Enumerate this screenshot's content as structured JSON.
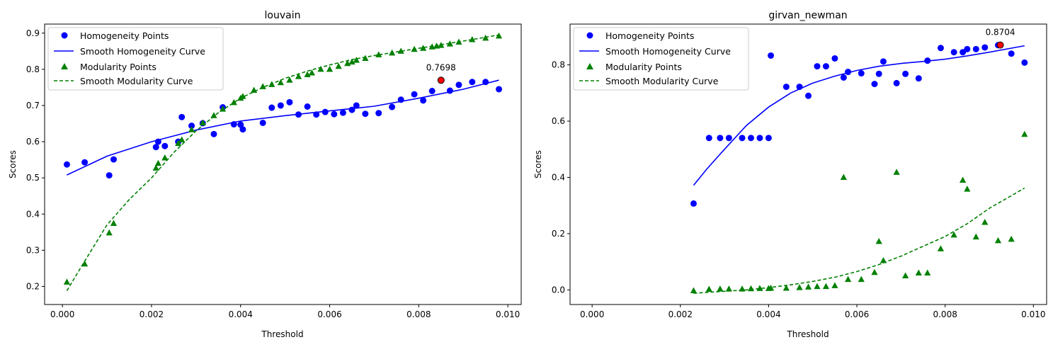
{
  "chart_data": [
    {
      "type": "scatter",
      "title": "louvain",
      "xlabel": "Threshold",
      "ylabel": "Scores",
      "xlim": [
        -0.0004,
        0.0103
      ],
      "ylim": [
        0.15,
        0.925
      ],
      "xticks": [
        0.0,
        0.002,
        0.004,
        0.006,
        0.008,
        0.01
      ],
      "xtick_labels": [
        "0.000",
        "0.002",
        "0.004",
        "0.006",
        "0.008",
        "0.010"
      ],
      "yticks": [
        0.2,
        0.3,
        0.4,
        0.5,
        0.6,
        0.7,
        0.8,
        0.9
      ],
      "ytick_labels": [
        "0.2",
        "0.3",
        "0.4",
        "0.5",
        "0.6",
        "0.7",
        "0.8",
        "0.9"
      ],
      "legend_position": "top-left",
      "series": [
        {
          "name": "Homogeneity Points",
          "kind": "scatter",
          "marker": "circle",
          "color": "#0000ff",
          "x": [
            0.0001,
            0.0005,
            0.00105,
            0.00115,
            0.0021,
            0.00215,
            0.0023,
            0.0026,
            0.00268,
            0.0029,
            0.00315,
            0.0034,
            0.0036,
            0.00385,
            0.004,
            0.00405,
            0.0045,
            0.0047,
            0.0049,
            0.0051,
            0.0053,
            0.0055,
            0.0057,
            0.0059,
            0.0061,
            0.0063,
            0.0065,
            0.0066,
            0.0068,
            0.0071,
            0.0074,
            0.0076,
            0.0079,
            0.0081,
            0.0083,
            0.0085,
            0.0087,
            0.0089,
            0.0092,
            0.0095,
            0.0098
          ],
          "y": [
            0.537,
            0.543,
            0.507,
            0.551,
            0.585,
            0.6,
            0.588,
            0.6,
            0.668,
            0.644,
            0.651,
            0.621,
            0.695,
            0.648,
            0.647,
            0.634,
            0.652,
            0.694,
            0.7,
            0.709,
            0.675,
            0.697,
            0.675,
            0.682,
            0.676,
            0.68,
            0.688,
            0.7,
            0.677,
            0.679,
            0.696,
            0.716,
            0.731,
            0.714,
            0.74,
            0.77,
            0.741,
            0.757,
            0.765,
            0.765,
            0.745
          ]
        },
        {
          "name": "Smooth Homogeneity Curve",
          "kind": "line",
          "style": "solid",
          "color": "#0000ff",
          "x": [
            0.0001,
            0.001,
            0.002,
            0.003,
            0.004,
            0.005,
            0.006,
            0.007,
            0.008,
            0.009,
            0.0098
          ],
          "y": [
            0.508,
            0.56,
            0.6,
            0.632,
            0.657,
            0.672,
            0.685,
            0.698,
            0.72,
            0.745,
            0.77
          ]
        },
        {
          "name": "Modularity Points",
          "kind": "scatter",
          "marker": "triangle",
          "color": "#008000",
          "x": [
            0.0001,
            0.0005,
            0.00105,
            0.00115,
            0.0021,
            0.00215,
            0.0023,
            0.0026,
            0.00268,
            0.0029,
            0.00315,
            0.0034,
            0.0036,
            0.00385,
            0.004,
            0.00405,
            0.0043,
            0.0045,
            0.0047,
            0.0049,
            0.0051,
            0.0053,
            0.0055,
            0.0056,
            0.0058,
            0.006,
            0.0062,
            0.0064,
            0.0065,
            0.0066,
            0.0068,
            0.0071,
            0.0074,
            0.0076,
            0.0079,
            0.0081,
            0.0083,
            0.0084,
            0.0085,
            0.0087,
            0.0089,
            0.0092,
            0.0095,
            0.0098
          ],
          "y": [
            0.212,
            0.262,
            0.348,
            0.374,
            0.527,
            0.54,
            0.555,
            0.595,
            0.605,
            0.633,
            0.652,
            0.672,
            0.69,
            0.708,
            0.72,
            0.725,
            0.742,
            0.752,
            0.758,
            0.763,
            0.77,
            0.78,
            0.785,
            0.79,
            0.8,
            0.8,
            0.808,
            0.816,
            0.82,
            0.825,
            0.83,
            0.84,
            0.845,
            0.85,
            0.855,
            0.858,
            0.862,
            0.864,
            0.866,
            0.87,
            0.875,
            0.882,
            0.886,
            0.892
          ]
        },
        {
          "name": "Smooth Modularity Curve",
          "kind": "line",
          "style": "dashed",
          "color": "#008000",
          "x": [
            0.0001,
            0.0005,
            0.001,
            0.0015,
            0.002,
            0.0025,
            0.003,
            0.0035,
            0.004,
            0.0045,
            0.005,
            0.0055,
            0.006,
            0.0065,
            0.007,
            0.0075,
            0.008,
            0.0085,
            0.009,
            0.0098
          ],
          "y": [
            0.188,
            0.27,
            0.37,
            0.44,
            0.5,
            0.57,
            0.63,
            0.68,
            0.72,
            0.75,
            0.775,
            0.795,
            0.812,
            0.827,
            0.838,
            0.848,
            0.858,
            0.868,
            0.878,
            0.895
          ]
        }
      ],
      "highlight": {
        "x": 0.0085,
        "y": 0.7698,
        "label": "0.7698",
        "color": "#ff0000"
      }
    },
    {
      "type": "scatter",
      "title": "girvan_newman",
      "xlabel": "Threshold",
      "ylabel": "Scores",
      "xlim": [
        -0.0005,
        0.0103
      ],
      "ylim": [
        -0.052,
        0.945
      ],
      "xticks": [
        0.0,
        0.002,
        0.004,
        0.006,
        0.008,
        0.01
      ],
      "xtick_labels": [
        "0.000",
        "0.002",
        "0.004",
        "0.006",
        "0.008",
        "0.010"
      ],
      "yticks": [
        0.0,
        0.2,
        0.4,
        0.6,
        0.8
      ],
      "ytick_labels": [
        "0.0",
        "0.2",
        "0.4",
        "0.6",
        "0.8"
      ],
      "legend_position": "top-left",
      "series": [
        {
          "name": "Homogeneity Points",
          "kind": "scatter",
          "marker": "circle",
          "color": "#0000ff",
          "x": [
            0.0023,
            0.00265,
            0.0029,
            0.0031,
            0.0034,
            0.0036,
            0.0038,
            0.004,
            0.00405,
            0.0044,
            0.0047,
            0.0049,
            0.0051,
            0.0053,
            0.0055,
            0.0057,
            0.0058,
            0.0061,
            0.0064,
            0.0065,
            0.0066,
            0.0069,
            0.0071,
            0.0074,
            0.0076,
            0.0079,
            0.0082,
            0.0084,
            0.0085,
            0.0087,
            0.0089,
            0.0092,
            0.0095,
            0.0098
          ],
          "y": [
            0.307,
            0.54,
            0.54,
            0.54,
            0.54,
            0.54,
            0.54,
            0.54,
            0.833,
            0.722,
            0.722,
            0.69,
            0.795,
            0.795,
            0.823,
            0.755,
            0.775,
            0.77,
            0.732,
            0.768,
            0.812,
            0.735,
            0.768,
            0.752,
            0.815,
            0.86,
            0.845,
            0.845,
            0.856,
            0.856,
            0.862,
            0.87,
            0.84,
            0.808
          ]
        },
        {
          "name": "Smooth Homogeneity Curve",
          "kind": "line",
          "style": "solid",
          "color": "#0000ff",
          "x": [
            0.0023,
            0.0026,
            0.003,
            0.0035,
            0.004,
            0.0045,
            0.005,
            0.0055,
            0.006,
            0.0065,
            0.007,
            0.0075,
            0.008,
            0.0085,
            0.009,
            0.0098
          ],
          "y": [
            0.372,
            0.43,
            0.5,
            0.585,
            0.65,
            0.7,
            0.735,
            0.76,
            0.78,
            0.795,
            0.805,
            0.812,
            0.82,
            0.832,
            0.845,
            0.868
          ]
        },
        {
          "name": "Modularity Points",
          "kind": "scatter",
          "marker": "triangle",
          "color": "#008000",
          "x": [
            0.0023,
            0.00265,
            0.0029,
            0.0031,
            0.0034,
            0.0036,
            0.0038,
            0.004,
            0.00405,
            0.0044,
            0.0047,
            0.0049,
            0.0051,
            0.0053,
            0.0055,
            0.0057,
            0.0058,
            0.0061,
            0.0064,
            0.0065,
            0.0066,
            0.0069,
            0.0071,
            0.0074,
            0.0076,
            0.0079,
            0.0082,
            0.0084,
            0.0085,
            0.0087,
            0.0089,
            0.0092,
            0.0095,
            0.0098
          ],
          "y": [
            -0.003,
            0.002,
            0.003,
            0.003,
            0.003,
            0.004,
            0.005,
            0.005,
            0.006,
            0.006,
            0.008,
            0.01,
            0.012,
            0.012,
            0.015,
            0.4,
            0.037,
            0.037,
            0.062,
            0.172,
            0.104,
            0.418,
            0.05,
            0.06,
            0.06,
            0.146,
            0.195,
            0.39,
            0.358,
            0.188,
            0.24,
            0.175,
            0.18,
            0.553
          ]
        },
        {
          "name": "Smooth Modularity Curve",
          "kind": "line",
          "style": "dashed",
          "color": "#008000",
          "x": [
            0.0023,
            0.003,
            0.0035,
            0.004,
            0.0045,
            0.005,
            0.0055,
            0.006,
            0.0065,
            0.007,
            0.0075,
            0.008,
            0.0085,
            0.009,
            0.0098
          ],
          "y": [
            -0.012,
            -0.005,
            0.0,
            0.008,
            0.018,
            0.03,
            0.045,
            0.065,
            0.09,
            0.12,
            0.155,
            0.19,
            0.235,
            0.29,
            0.362
          ]
        }
      ],
      "highlight": {
        "x": 0.00925,
        "y": 0.8704,
        "label": "0.8704",
        "color": "#ff0000"
      }
    }
  ]
}
